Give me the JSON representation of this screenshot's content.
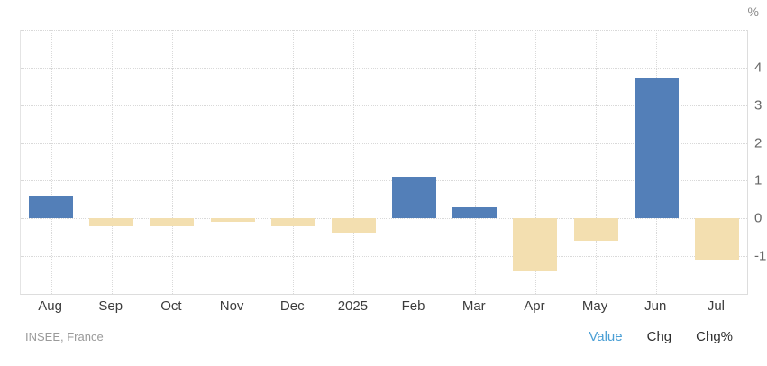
{
  "chart_data": {
    "type": "bar",
    "title": "",
    "categories": [
      "Aug",
      "Sep",
      "Oct",
      "Nov",
      "Dec",
      "2025",
      "Feb",
      "Mar",
      "Apr",
      "May",
      "Jun",
      "Jul"
    ],
    "values": [
      0.6,
      -0.2,
      -0.2,
      -0.1,
      -0.2,
      -0.4,
      1.1,
      0.3,
      -1.4,
      -0.6,
      3.7,
      -1.1
    ],
    "xlabel": "",
    "ylabel": "%",
    "unit_label": "%",
    "ylim": [
      -2,
      5
    ],
    "yticks": [
      4,
      3,
      2,
      1,
      0,
      -1
    ],
    "grid_values": [
      5,
      4,
      3,
      2,
      1,
      0,
      -1
    ],
    "grid": true,
    "axis_side": "right",
    "positive_color": "#537FB8",
    "negative_color": "#F3DFB0",
    "grid_color": "#D9D9D9"
  },
  "footer": {
    "source": "INSEE, France",
    "toggles": [
      {
        "label": "Value",
        "active": true,
        "color": "#4A9FD5"
      },
      {
        "label": "Chg",
        "active": false,
        "color": "#2E2E2E"
      },
      {
        "label": "Chg%",
        "active": false,
        "color": "#2E2E2E"
      }
    ]
  }
}
